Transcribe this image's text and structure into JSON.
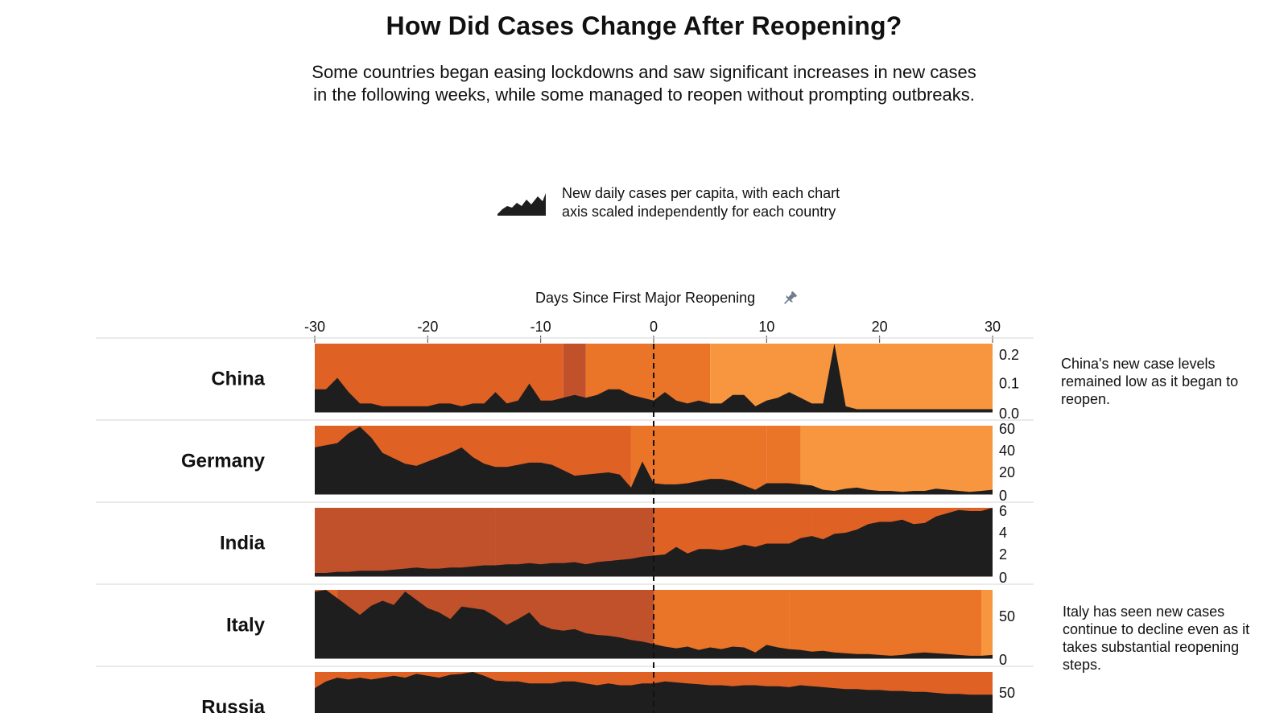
{
  "title": "How Did Cases Change After Reopening?",
  "subtitle": "Some countries began easing lockdowns and saw significant increases in new cases in the following weeks, while some managed to reopen without prompting outbreaks.",
  "legend": {
    "text": "New daily cases per capita, with each chart axis scaled independently for each country",
    "icon": "area-chart-icon"
  },
  "axis_title": "Days Since First Major Reopening",
  "pin_icon": "pin-icon",
  "annotations": {
    "china": "China's new case levels remained low as it began to reopen.",
    "italy": "Italy has seen new cases continue to decline even as it takes substantial reopening steps."
  },
  "colors": {
    "area": "#1e1e1e",
    "dark": "#c0512a",
    "mid": "#df6124",
    "orange": "#ea7428",
    "light": "#f7963e",
    "border": "#d6d6d6"
  },
  "chart_data": {
    "type": "area",
    "x_label": "Days Since First Major Reopening",
    "x_ticks": [
      -30,
      -20,
      -10,
      0,
      10,
      20,
      30
    ],
    "xlim": [
      -30,
      30
    ],
    "series": [
      {
        "name": "China",
        "y_ticks": [
          "0.2",
          "0.1",
          "0.0"
        ],
        "y_tick_values": [
          0.2,
          0.1,
          0.0
        ],
        "ylim": [
          0,
          0.24
        ],
        "values": [
          0.08,
          0.08,
          0.12,
          0.07,
          0.03,
          0.03,
          0.02,
          0.02,
          0.02,
          0.02,
          0.02,
          0.03,
          0.03,
          0.02,
          0.03,
          0.03,
          0.07,
          0.03,
          0.04,
          0.1,
          0.04,
          0.04,
          0.05,
          0.06,
          0.05,
          0.06,
          0.08,
          0.08,
          0.06,
          0.05,
          0.04,
          0.07,
          0.04,
          0.03,
          0.04,
          0.03,
          0.03,
          0.06,
          0.06,
          0.02,
          0.04,
          0.05,
          0.07,
          0.05,
          0.03,
          0.03,
          0.25,
          0.02,
          0.01,
          0.01,
          0.01,
          0.01,
          0.01,
          0.01,
          0.01,
          0.01,
          0.01,
          0.01,
          0.01,
          0.01,
          0.01
        ],
        "bands": [
          {
            "from": -30,
            "to": -8,
            "color": "mid"
          },
          {
            "from": -8,
            "to": -6,
            "color": "dark"
          },
          {
            "from": -6,
            "to": 5,
            "color": "orange"
          },
          {
            "from": 5,
            "to": 30,
            "color": "light"
          }
        ]
      },
      {
        "name": "Germany",
        "y_ticks": [
          "60",
          "40",
          "20",
          "0"
        ],
        "y_tick_values": [
          60,
          40,
          20,
          0
        ],
        "ylim": [
          0,
          63
        ],
        "values": [
          43,
          45,
          47,
          56,
          62,
          52,
          38,
          33,
          28,
          26,
          30,
          34,
          38,
          43,
          34,
          28,
          25,
          25,
          27,
          29,
          29,
          27,
          22,
          17,
          18,
          19,
          20,
          18,
          6,
          30,
          10,
          9,
          9,
          10,
          12,
          14,
          14,
          12,
          8,
          4,
          10,
          10,
          10,
          9,
          8,
          4,
          3,
          5,
          6,
          4,
          3,
          3,
          2,
          3,
          3,
          5,
          4,
          3,
          2,
          3,
          4
        ],
        "bands": [
          {
            "from": -30,
            "to": -2,
            "color": "mid"
          },
          {
            "from": -2,
            "to": 10,
            "color": "orange"
          },
          {
            "from": 10,
            "to": 13,
            "color": "orange"
          },
          {
            "from": 13,
            "to": 30,
            "color": "light"
          }
        ]
      },
      {
        "name": "India",
        "y_ticks": [
          "6",
          "4",
          "2",
          "0"
        ],
        "y_tick_values": [
          6,
          4,
          2,
          0
        ],
        "ylim": [
          0,
          6.3
        ],
        "values": [
          0.3,
          0.3,
          0.4,
          0.4,
          0.5,
          0.5,
          0.5,
          0.6,
          0.7,
          0.8,
          0.7,
          0.7,
          0.8,
          0.8,
          0.9,
          1,
          1,
          1.1,
          1.1,
          1.2,
          1.1,
          1.2,
          1.2,
          1.3,
          1.1,
          1.3,
          1.4,
          1.5,
          1.6,
          1.8,
          1.9,
          2,
          2.7,
          2.1,
          2.5,
          2.5,
          2.4,
          2.6,
          2.9,
          2.7,
          3,
          3,
          3,
          3.5,
          3.7,
          3.4,
          3.9,
          4,
          4.3,
          4.8,
          5,
          5,
          5.2,
          4.8,
          4.9,
          5.5,
          5.8,
          6.1,
          6,
          6,
          6.3
        ],
        "bands": [
          {
            "from": -30,
            "to": -14,
            "color": "dark"
          },
          {
            "from": -14,
            "to": 0,
            "color": "dark"
          },
          {
            "from": 0,
            "to": 14,
            "color": "mid"
          },
          {
            "from": 14,
            "to": 30,
            "color": "mid"
          }
        ]
      },
      {
        "name": "Italy",
        "y_ticks": [
          "50",
          "0"
        ],
        "y_tick_values": [
          50,
          0
        ],
        "ylim": [
          0,
          82
        ],
        "values": [
          80,
          82,
          72,
          62,
          52,
          63,
          69,
          64,
          80,
          70,
          60,
          55,
          47,
          62,
          60,
          58,
          50,
          40,
          47,
          55,
          40,
          35,
          33,
          35,
          30,
          28,
          27,
          25,
          22,
          20,
          17,
          14,
          12,
          14,
          10,
          13,
          11,
          14,
          13,
          7,
          16,
          13,
          11,
          10,
          8,
          9,
          7,
          6,
          5,
          5,
          4,
          3,
          4,
          6,
          7,
          6,
          5,
          4,
          3,
          3,
          4
        ],
        "bands": [
          {
            "from": -30,
            "to": -28,
            "color": "mid"
          },
          {
            "from": -28,
            "to": 0,
            "color": "dark"
          },
          {
            "from": 0,
            "to": 12,
            "color": "orange"
          },
          {
            "from": 12,
            "to": 14,
            "color": "orange"
          },
          {
            "from": 14,
            "to": 29,
            "color": "orange"
          },
          {
            "from": 29,
            "to": 30,
            "color": "light"
          }
        ]
      },
      {
        "name": "Russia",
        "y_ticks": [
          "50"
        ],
        "y_tick_values": [
          50
        ],
        "ylim": [
          0,
          72
        ],
        "values": [
          55,
          62,
          66,
          64,
          66,
          64,
          66,
          68,
          66,
          70,
          68,
          66,
          69,
          70,
          72,
          68,
          63,
          62,
          62,
          60,
          60,
          60,
          62,
          62,
          60,
          58,
          60,
          58,
          58,
          60,
          60,
          62,
          61,
          60,
          59,
          58,
          58,
          57,
          58,
          58,
          57,
          57,
          56,
          58,
          57,
          56,
          55,
          54,
          54,
          53,
          53,
          52,
          52,
          51,
          51,
          50,
          49,
          49,
          48,
          48,
          48
        ],
        "bands": [
          {
            "from": -30,
            "to": 30,
            "color": "mid"
          }
        ]
      }
    ]
  }
}
